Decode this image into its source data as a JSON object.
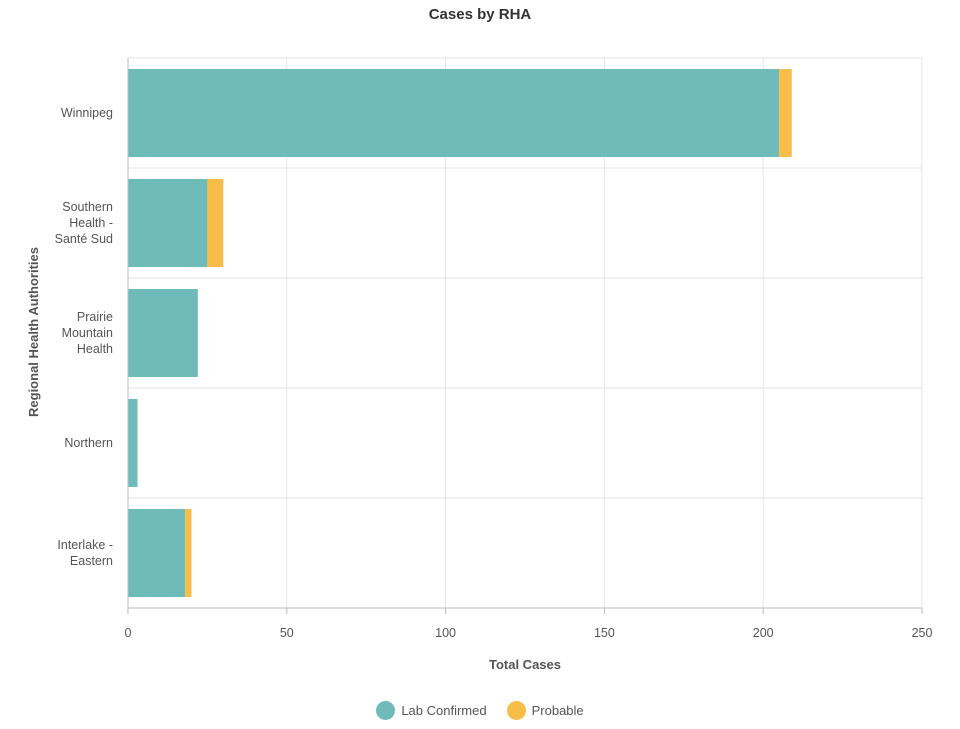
{
  "chart_data": {
    "type": "bar",
    "orientation": "horizontal",
    "stacked": true,
    "title": "Cases by RHA",
    "xlabel": "Total Cases",
    "ylabel": "Regional Health Authorities",
    "xlim": [
      0,
      250
    ],
    "xticks": [
      "0",
      "50",
      "100",
      "150",
      "200",
      "250"
    ],
    "grid": true,
    "legend_position": "bottom",
    "categories": [
      [
        "Winnipeg"
      ],
      [
        "Southern",
        "Health -",
        "Santé Sud"
      ],
      [
        "Prairie",
        "Mountain",
        "Health"
      ],
      [
        "Northern"
      ],
      [
        "Interlake -",
        "Eastern"
      ]
    ],
    "series": [
      {
        "name": "Lab Confirmed",
        "color": "#6fbbb9",
        "values": [
          205,
          25,
          22,
          3,
          18
        ]
      },
      {
        "name": "Probable",
        "color": "#f7bd48",
        "values": [
          4,
          5,
          0,
          0,
          2
        ]
      }
    ]
  }
}
